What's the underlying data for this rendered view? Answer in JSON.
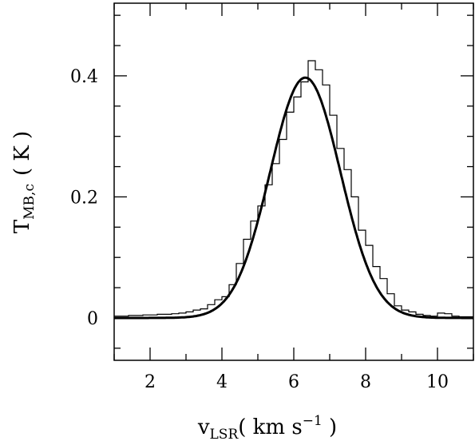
{
  "chart_data": {
    "type": "line",
    "xlabel": {
      "main": "v",
      "sub": "LSR",
      "units_pre": "( km s",
      "units_exp": "−1",
      "units_post": " )"
    },
    "ylabel": {
      "main": "T",
      "sub": "MB,c",
      "units": "( K )"
    },
    "xlim": [
      1,
      11
    ],
    "ylim": [
      -0.07,
      0.52
    ],
    "xticks_major": [
      2,
      4,
      6,
      8,
      10
    ],
    "xticks_minor": [
      1,
      3,
      5,
      7,
      9,
      11
    ],
    "xtick_labels": [
      "2",
      "4",
      "6",
      "8",
      "10"
    ],
    "yticks_major": [
      0,
      0.2,
      0.4
    ],
    "yticks_minor": [
      -0.05,
      0.05,
      0.1,
      0.15,
      0.25,
      0.3,
      0.35,
      0.45,
      0.5
    ],
    "ytick_labels": [
      "0",
      "0.2",
      "0.4"
    ],
    "grid": false,
    "legend": "none",
    "series": [
      {
        "style": "histogram",
        "color": "#000000",
        "bin_width": 0.2,
        "bins": [
          [
            1.0,
            0.003
          ],
          [
            1.2,
            0.003
          ],
          [
            1.4,
            0.004
          ],
          [
            1.6,
            0.004
          ],
          [
            1.8,
            0.005
          ],
          [
            2.0,
            0.005
          ],
          [
            2.2,
            0.006
          ],
          [
            2.4,
            0.006
          ],
          [
            2.6,
            0.007
          ],
          [
            2.8,
            0.008
          ],
          [
            3.0,
            0.01
          ],
          [
            3.2,
            0.013
          ],
          [
            3.4,
            0.015
          ],
          [
            3.6,
            0.022
          ],
          [
            3.8,
            0.03
          ],
          [
            4.0,
            0.035
          ],
          [
            4.2,
            0.055
          ],
          [
            4.4,
            0.09
          ],
          [
            4.6,
            0.13
          ],
          [
            4.8,
            0.16
          ],
          [
            5.0,
            0.185
          ],
          [
            5.2,
            0.22
          ],
          [
            5.4,
            0.255
          ],
          [
            5.6,
            0.295
          ],
          [
            5.8,
            0.34
          ],
          [
            6.0,
            0.365
          ],
          [
            6.2,
            0.39
          ],
          [
            6.4,
            0.425
          ],
          [
            6.6,
            0.41
          ],
          [
            6.8,
            0.385
          ],
          [
            7.0,
            0.335
          ],
          [
            7.2,
            0.28
          ],
          [
            7.4,
            0.245
          ],
          [
            7.6,
            0.2
          ],
          [
            7.8,
            0.145
          ],
          [
            8.0,
            0.12
          ],
          [
            8.2,
            0.085
          ],
          [
            8.4,
            0.065
          ],
          [
            8.6,
            0.04
          ],
          [
            8.8,
            0.02
          ],
          [
            9.0,
            0.013
          ],
          [
            9.2,
            0.01
          ],
          [
            9.4,
            0.006
          ],
          [
            9.6,
            0.004
          ],
          [
            9.8,
            0.003
          ],
          [
            10.0,
            0.008
          ],
          [
            10.2,
            0.007
          ],
          [
            10.4,
            0.003
          ],
          [
            10.6,
            0.002
          ],
          [
            10.8,
            0.002
          ]
        ]
      },
      {
        "style": "gaussian-fit",
        "color": "#000000",
        "amplitude": 0.397,
        "center": 6.32,
        "sigma": 0.98
      }
    ]
  }
}
